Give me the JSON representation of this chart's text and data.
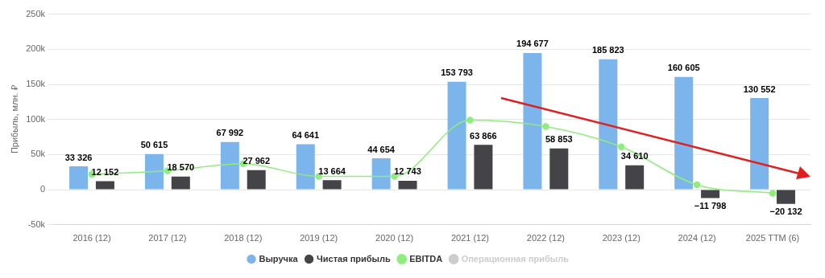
{
  "chart_data": {
    "type": "bar",
    "ylabel": "Прибыль, млн. ₽",
    "categories": [
      "2016 (12)",
      "2017 (12)",
      "2018 (12)",
      "2019 (12)",
      "2020 (12)",
      "2021 (12)",
      "2022 (12)",
      "2023 (12)",
      "2024 (12)",
      "2025 TTM (6)"
    ],
    "series": [
      {
        "name": "Выручка",
        "color": "#7cb5ec",
        "values": [
          33326,
          50615,
          67992,
          64641,
          44654,
          153793,
          194677,
          185823,
          160605,
          130552
        ],
        "value_labels": [
          "33 326",
          "50 615",
          "67 992",
          "64 641",
          "44 654",
          "153 793",
          "194 677",
          "185 823",
          "160 605",
          "130 552"
        ]
      },
      {
        "name": "Чистая прибыль",
        "color": "#434348",
        "values": [
          12152,
          18570,
          27962,
          13664,
          12743,
          63866,
          58853,
          34610,
          -11798,
          -20132
        ],
        "value_labels": [
          "12 152",
          "18 570",
          "27 962",
          "13 664",
          "12 743",
          "63 866",
          "58 853",
          "34 610",
          "−11 798",
          "−20 132"
        ]
      },
      {
        "name": "EBITDA",
        "type": "line",
        "color": "#90ed7d",
        "marker": "circle",
        "values": [
          22000,
          27000,
          37000,
          19000,
          19000,
          99000,
          90000,
          61000,
          7000,
          -5000
        ]
      },
      {
        "name": "Операционная прибыль",
        "type": "line",
        "color": "#cccccc",
        "marker": "circle",
        "values": [
          null,
          null,
          null,
          null,
          null,
          null,
          null,
          null,
          null,
          null
        ]
      }
    ],
    "ylim": [
      -50000,
      250000
    ],
    "yticks": [
      {
        "value": -50000,
        "label": "-50k"
      },
      0,
      {
        "value": 50000,
        "label": "50k"
      },
      {
        "value": 100000,
        "label": "100k"
      },
      {
        "value": 150000,
        "label": "150k"
      },
      {
        "value": 200000,
        "label": "200k"
      },
      {
        "value": 250000,
        "label": "250k"
      }
    ],
    "grid": "y",
    "legend": "bottom"
  }
}
